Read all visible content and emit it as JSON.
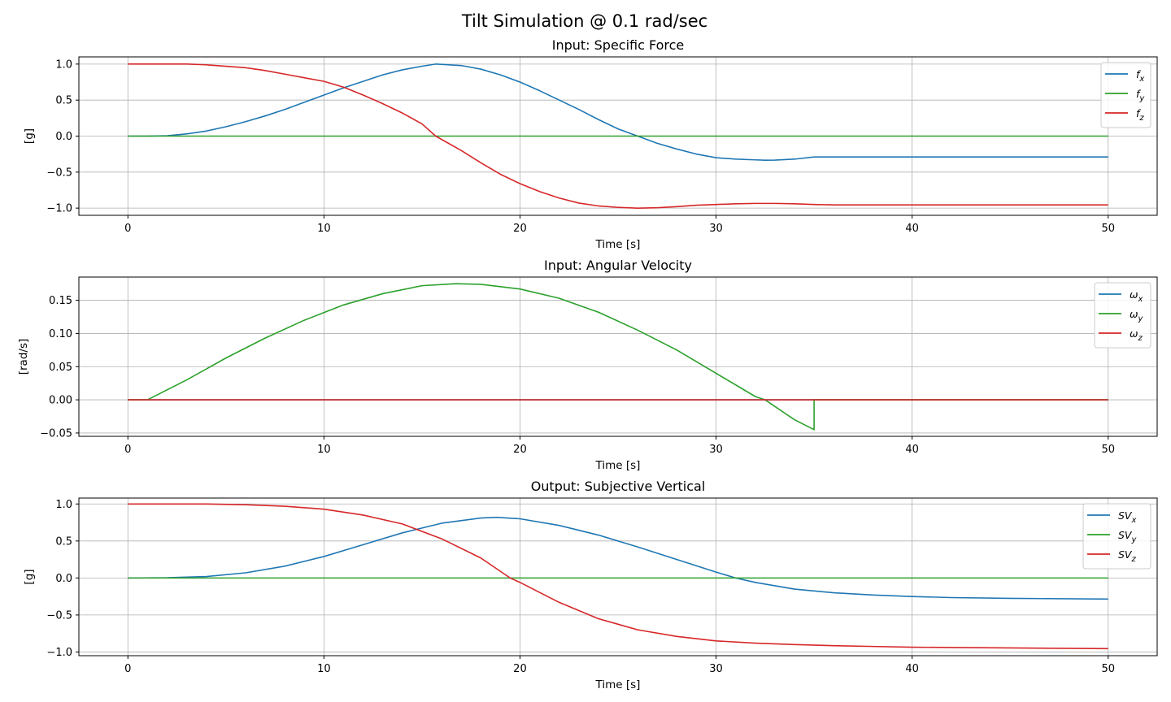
{
  "figure": {
    "title": "Tilt Simulation @ 0.1 rad/sec"
  },
  "chart_data": [
    {
      "type": "line",
      "title": "Input: Specific Force",
      "xlabel": "Time [s]",
      "ylabel": "[g]",
      "xlim": [
        -2.5,
        52.5
      ],
      "ylim": [
        -1.1,
        1.1
      ],
      "xticks": [
        0,
        10,
        20,
        30,
        40,
        50
      ],
      "xtick_labels": [
        "0",
        "10",
        "20",
        "30",
        "40",
        "50"
      ],
      "yticks": [
        1.0,
        0.5,
        0.0,
        -0.5,
        -1.0
      ],
      "ytick_labels": [
        "1.0",
        "0.5",
        "0.0",
        "−0.5",
        "−1.0"
      ],
      "grid": true,
      "legend": "top-right",
      "series": [
        {
          "name": "f",
          "sub": "x",
          "color": "#1f77b4",
          "x": [
            0,
            1,
            2,
            3,
            4,
            5,
            6,
            7,
            8,
            9,
            10,
            11,
            12,
            13,
            14,
            15,
            15.7,
            17,
            18,
            19,
            20,
            21,
            22,
            23,
            24,
            25,
            26,
            27,
            28,
            29,
            30,
            31,
            32,
            32.5,
            33,
            34,
            35,
            36,
            40,
            45,
            50
          ],
          "y": [
            0,
            0,
            0.005,
            0.03,
            0.07,
            0.13,
            0.2,
            0.28,
            0.37,
            0.47,
            0.57,
            0.67,
            0.76,
            0.85,
            0.92,
            0.97,
            1.0,
            0.98,
            0.93,
            0.85,
            0.75,
            0.63,
            0.5,
            0.37,
            0.23,
            0.1,
            0.0,
            -0.1,
            -0.18,
            -0.25,
            -0.3,
            -0.32,
            -0.33,
            -0.335,
            -0.333,
            -0.32,
            -0.29,
            -0.29,
            -0.29,
            -0.29,
            -0.29
          ]
        },
        {
          "name": "f",
          "sub": "y",
          "color": "#2ca02c",
          "x": [
            0,
            50
          ],
          "y": [
            0,
            0
          ]
        },
        {
          "name": "f",
          "sub": "z",
          "color": "#d62728",
          "x": [
            0,
            1,
            2,
            3,
            4,
            5,
            6,
            7,
            8,
            9,
            10,
            11,
            12,
            13,
            14,
            15,
            15.7,
            17,
            18,
            19,
            20,
            21,
            22,
            23,
            24,
            25,
            26,
            27,
            28,
            29,
            30,
            31,
            32,
            33,
            34,
            35,
            36,
            40,
            45,
            50
          ],
          "y": [
            1.0,
            1.0,
            1.0,
            1.0,
            0.99,
            0.97,
            0.95,
            0.91,
            0.86,
            0.81,
            0.76,
            0.68,
            0.57,
            0.45,
            0.32,
            0.17,
            0.0,
            -0.2,
            -0.37,
            -0.53,
            -0.66,
            -0.77,
            -0.86,
            -0.93,
            -0.97,
            -0.99,
            -1.0,
            -0.995,
            -0.98,
            -0.96,
            -0.95,
            -0.94,
            -0.935,
            -0.935,
            -0.94,
            -0.95,
            -0.955,
            -0.955,
            -0.955,
            -0.955
          ]
        }
      ]
    },
    {
      "type": "line",
      "title": "Input: Angular Velocity",
      "xlabel": "Time [s]",
      "ylabel": "[rad/s]",
      "xlim": [
        -2.5,
        52.5
      ],
      "ylim": [
        -0.055,
        0.185
      ],
      "xticks": [
        0,
        10,
        20,
        30,
        40,
        50
      ],
      "xtick_labels": [
        "0",
        "10",
        "20",
        "30",
        "40",
        "50"
      ],
      "yticks": [
        0.15,
        0.1,
        0.05,
        0.0,
        -0.05
      ],
      "ytick_labels": [
        "0.15",
        "0.10",
        "0.05",
        "0.00",
        "−0.05"
      ],
      "grid": true,
      "legend": "top-right",
      "series": [
        {
          "name": "ω",
          "sub": "x",
          "color": "#1f77b4",
          "x": [
            0,
            50
          ],
          "y": [
            0,
            0
          ]
        },
        {
          "name": "ω",
          "sub": "y",
          "color": "#2ca02c",
          "x": [
            0,
            1,
            3,
            5,
            7,
            9,
            11,
            13,
            15,
            16.7,
            18,
            20,
            22,
            24,
            26,
            28,
            30,
            32,
            32.5,
            34,
            35,
            35,
            50
          ],
          "y": [
            0,
            0,
            0.03,
            0.063,
            0.093,
            0.12,
            0.143,
            0.16,
            0.172,
            0.175,
            0.174,
            0.167,
            0.153,
            0.132,
            0.105,
            0.075,
            0.04,
            0.005,
            0.0,
            -0.03,
            -0.045,
            0.0,
            0.0
          ]
        },
        {
          "name": "ω",
          "sub": "z",
          "color": "#d62728",
          "x": [
            0,
            50
          ],
          "y": [
            0,
            0
          ]
        }
      ]
    },
    {
      "type": "line",
      "title": "Output: Subjective Vertical",
      "xlabel": "Time [s]",
      "ylabel": "[g]",
      "xlim": [
        -2.5,
        52.5
      ],
      "ylim": [
        -1.05,
        1.08
      ],
      "xticks": [
        0,
        10,
        20,
        30,
        40,
        50
      ],
      "xtick_labels": [
        "0",
        "10",
        "20",
        "30",
        "40",
        "50"
      ],
      "yticks": [
        1.0,
        0.5,
        0.0,
        -0.5,
        -1.0
      ],
      "ytick_labels": [
        "1.0",
        "0.5",
        "0.0",
        "−0.5",
        "−1.0"
      ],
      "grid": true,
      "legend": "top-right",
      "series": [
        {
          "name": "SV",
          "sub": "x",
          "color": "#1f77b4",
          "x": [
            0,
            2,
            4,
            6,
            8,
            10,
            12,
            14,
            16,
            18,
            18.8,
            20,
            22,
            24,
            26,
            28,
            30,
            31,
            32,
            34,
            36,
            38,
            40,
            42,
            45,
            50
          ],
          "y": [
            0,
            0.003,
            0.02,
            0.07,
            0.16,
            0.29,
            0.45,
            0.61,
            0.74,
            0.81,
            0.82,
            0.8,
            0.71,
            0.58,
            0.42,
            0.25,
            0.08,
            0.0,
            -0.06,
            -0.15,
            -0.2,
            -0.23,
            -0.25,
            -0.265,
            -0.275,
            -0.285
          ]
        },
        {
          "name": "SV",
          "sub": "y",
          "color": "#2ca02c",
          "x": [
            0,
            50
          ],
          "y": [
            0,
            0
          ]
        },
        {
          "name": "SV",
          "sub": "z",
          "color": "#d62728",
          "x": [
            0,
            2,
            4,
            6,
            8,
            10,
            12,
            14,
            16,
            18,
            19.5,
            20,
            22,
            24,
            26,
            28,
            30,
            32,
            34,
            36,
            38,
            40,
            42,
            45,
            50
          ],
          "y": [
            1.0,
            1.0,
            1.0,
            0.99,
            0.97,
            0.93,
            0.85,
            0.73,
            0.53,
            0.27,
            0.0,
            -0.06,
            -0.33,
            -0.55,
            -0.7,
            -0.79,
            -0.85,
            -0.88,
            -0.9,
            -0.915,
            -0.925,
            -0.935,
            -0.94,
            -0.945,
            -0.955
          ]
        }
      ]
    }
  ]
}
